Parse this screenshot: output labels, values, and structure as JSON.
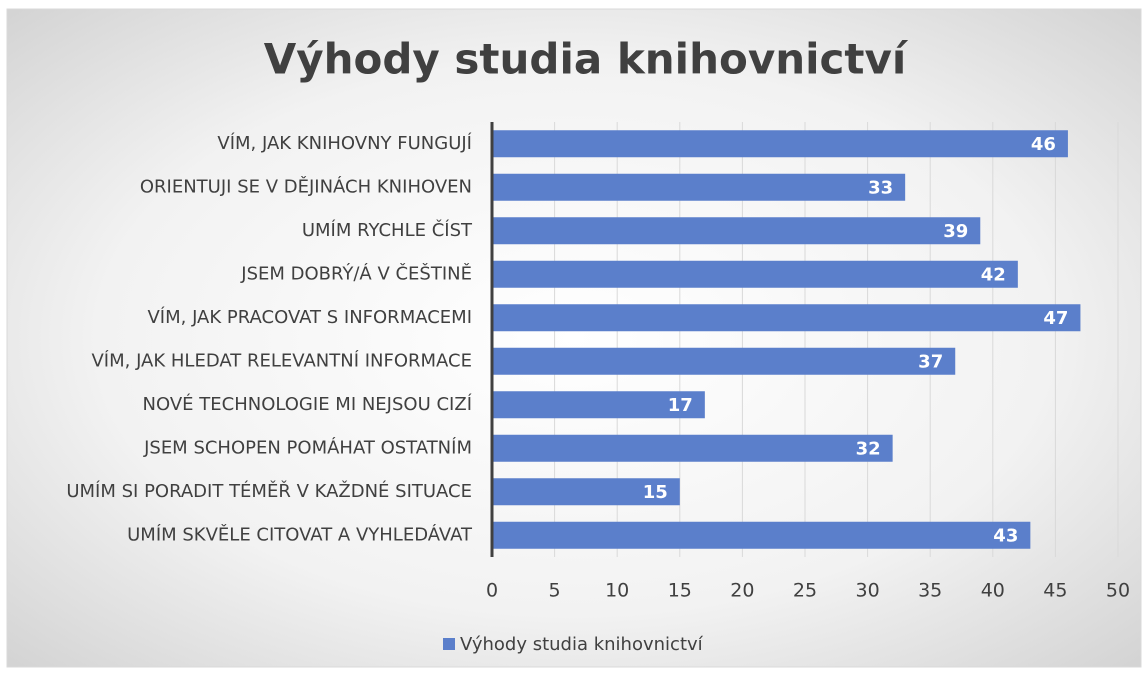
{
  "chart_data": {
    "type": "bar",
    "orientation": "horizontal",
    "title": "Výhody studia knihovnictví",
    "categories": [
      "VÍM, JAK KNIHOVNY FUNGUJÍ",
      "ORIENTUJI SE V DĚJINÁCH KNIHOVEN",
      "UMÍM RYCHLE ČÍST",
      "JSEM DOBRÝ/Á V ČEŠTINĚ",
      "VÍM, JAK PRACOVAT S INFORMACEMI",
      "VÍM, JAK HLEDAT RELEVANTNÍ INFORMACE",
      "NOVÉ TECHNOLOGIE MI NEJSOU CIZÍ",
      "JSEM SCHOPEN POMÁHAT OSTATNÍM",
      "UMÍM SI PORADIT TÉMĚŘ V KAŽDNÉ SITUACE",
      "UMÍM SKVĚLE CITOVAT A VYHLEDÁVAT"
    ],
    "series": [
      {
        "name": "Výhody studia knihovnictví",
        "color": "#5b7fcb",
        "values": [
          46,
          33,
          39,
          42,
          47,
          37,
          17,
          32,
          15,
          43
        ]
      }
    ],
    "xlim": [
      0,
      50
    ],
    "xticks": [
      0,
      5,
      10,
      15,
      20,
      25,
      30,
      35,
      40,
      45,
      50
    ],
    "grid": true,
    "legend": "bottom"
  }
}
